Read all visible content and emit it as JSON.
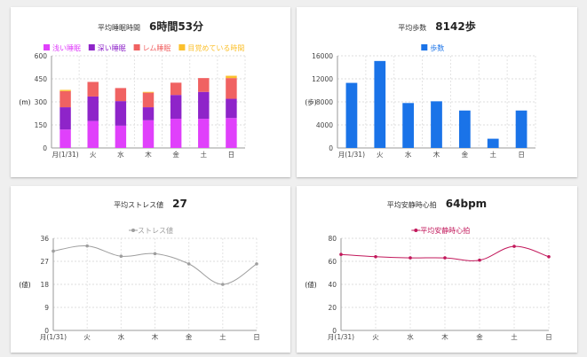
{
  "cards": {
    "sleep": {
      "label": "平均睡眠時間",
      "value": "6時間53分"
    },
    "steps": {
      "label": "平均歩数",
      "value": "8142歩"
    },
    "stress": {
      "label": "平均ストレス値",
      "value": "27"
    },
    "hr": {
      "label": "平均安静時心拍",
      "value": "64bpm"
    }
  },
  "chart_data": [
    {
      "type": "bar",
      "stacked": true,
      "categories": [
        "月(1/31)",
        "火",
        "水",
        "木",
        "金",
        "土",
        "日"
      ],
      "series": [
        {
          "name": "浅い睡眠",
          "color": "#e040fb",
          "values": [
            120,
            175,
            145,
            180,
            190,
            190,
            195
          ]
        },
        {
          "name": "深い睡眠",
          "color": "#8e24c9",
          "values": [
            145,
            160,
            160,
            85,
            155,
            175,
            125
          ]
        },
        {
          "name": "レム睡眠",
          "color": "#f06262",
          "values": [
            105,
            95,
            85,
            95,
            80,
            90,
            135
          ]
        },
        {
          "name": "目覚めている時間",
          "color": "#fbc02d",
          "values": [
            8,
            0,
            0,
            5,
            0,
            0,
            15
          ]
        }
      ],
      "ylabel": "(m)",
      "ylim": [
        0,
        600
      ],
      "yticks": [
        0,
        150,
        300,
        450,
        600
      ],
      "legend": "top",
      "grid": true
    },
    {
      "type": "bar",
      "categories": [
        "月(1/31)",
        "火",
        "水",
        "木",
        "金",
        "土",
        "日"
      ],
      "series": [
        {
          "name": "歩数",
          "color": "#1a73e8",
          "values": [
            11300,
            15100,
            7800,
            8100,
            6500,
            1600,
            6500
          ]
        }
      ],
      "ylabel": "(歩)",
      "ylim": [
        0,
        16000
      ],
      "yticks": [
        0,
        4000,
        8000,
        12000,
        16000
      ],
      "legend": "top",
      "grid": true
    },
    {
      "type": "line",
      "categories": [
        "月(1/31)",
        "火",
        "水",
        "木",
        "金",
        "土",
        "日"
      ],
      "series": [
        {
          "name": "ストレス値",
          "color": "#9e9e9e",
          "values": [
            31,
            33,
            29,
            30,
            26,
            18,
            26
          ]
        }
      ],
      "ylabel": "(値)",
      "ylim": [
        0,
        36
      ],
      "yticks": [
        0,
        9,
        18,
        27,
        36
      ],
      "legend": "top",
      "grid": true
    },
    {
      "type": "line",
      "categories": [
        "月(1/31)",
        "火",
        "水",
        "木",
        "金",
        "土",
        "日"
      ],
      "series": [
        {
          "name": "平均安静時心拍",
          "color": "#c2185b",
          "values": [
            66,
            64,
            63,
            63,
            61,
            73,
            64
          ]
        }
      ],
      "ylabel": "(値)",
      "ylim": [
        0,
        80
      ],
      "yticks": [
        0,
        20,
        40,
        60,
        80
      ],
      "legend": "top",
      "grid": true
    }
  ]
}
